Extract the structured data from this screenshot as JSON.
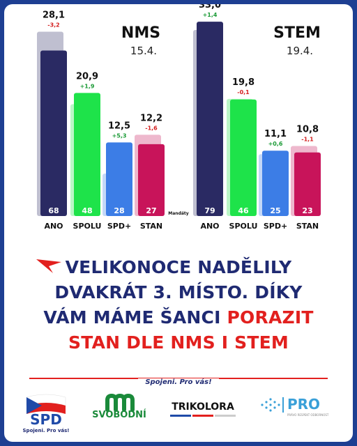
{
  "chart_data": [
    {
      "type": "bar",
      "title": "NMS",
      "date": "15.4.",
      "categories": [
        "ANO",
        "SPOLU",
        "SPD+",
        "STAN"
      ],
      "series": [
        {
          "name": "current",
          "values": [
            28.1,
            20.9,
            12.5,
            12.2
          ],
          "labels": [
            "28,1",
            "20,9",
            "12,5",
            "12,2"
          ]
        },
        {
          "name": "previous",
          "values": [
            31.3,
            19.0,
            7.2,
            13.8
          ]
        }
      ],
      "changes": [
        "-3,2",
        "+1,9",
        "+5,3",
        "-1,6"
      ],
      "seats": [
        "68",
        "48",
        "28",
        "27"
      ],
      "seats_label": "Mandáty",
      "colors": [
        "#2a2a63",
        "#1ee34a",
        "#3c7de6",
        "#c8145a"
      ],
      "ylim": [
        0,
        34
      ]
    },
    {
      "type": "bar",
      "title": "STEM",
      "date": "19.4.",
      "categories": [
        "ANO",
        "SPOLU",
        "SPD+",
        "STAN"
      ],
      "series": [
        {
          "name": "current",
          "values": [
            33.0,
            19.8,
            11.1,
            10.8
          ],
          "labels": [
            "33,0",
            "19,8",
            "11,1",
            "10,8"
          ]
        },
        {
          "name": "previous",
          "values": [
            31.6,
            19.9,
            10.5,
            11.9
          ]
        }
      ],
      "changes": [
        "+1,4",
        "-0,1",
        "+0,6",
        "-1,1"
      ],
      "seats": [
        "79",
        "46",
        "25",
        "23"
      ],
      "colors": [
        "#2a2a63",
        "#1ee34a",
        "#3c7de6",
        "#c8145a"
      ],
      "ylim": [
        0,
        34
      ]
    }
  ],
  "headline": {
    "line1": "VELIKONOCE NADĚLILY",
    "line2": "DVAKRÁT 3. MÍSTO. DÍKY",
    "line3a": "VÁM MÁME ŠANCI ",
    "line3b": "PORAZIT",
    "line4": "STAN DLE NMS I STEM"
  },
  "slogan": "Spojeni. Pro vás!",
  "logos": {
    "spd": {
      "name": "SPD",
      "tagline": "Spojeni. Pro vás!"
    },
    "svobodni": {
      "name": "SVOBODNÍ"
    },
    "trikolora": {
      "name": "TRIKOLORA"
    },
    "pro": {
      "name": "PRO",
      "tagline": "PRÁVO RESPEKT ODBORNOST"
    }
  },
  "colors": {
    "navy": "#1f2a72",
    "red": "#e2201e",
    "frame": "#1e3f92",
    "pro_blue": "#3aa0d8"
  }
}
